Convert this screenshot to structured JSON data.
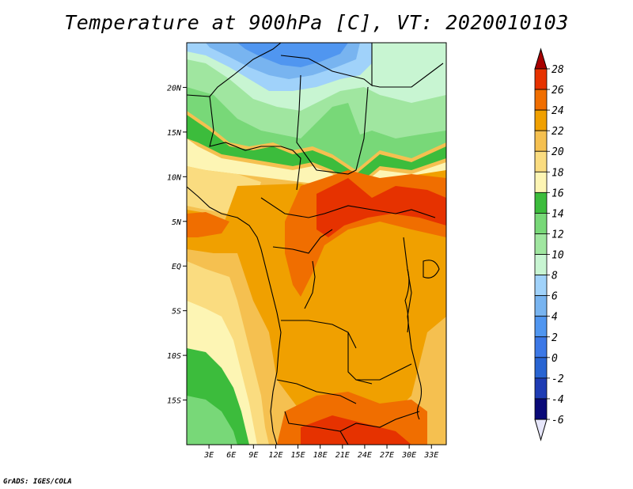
{
  "title": "Temperature at 900hPa [C], VT: 2020010103",
  "credit": "GrADS: IGES/COLA",
  "map": {
    "lon_range": [
      0,
      35
    ],
    "lat_range": [
      -20,
      25
    ],
    "x_ticks": [
      "3E",
      "6E",
      "9E",
      "12E",
      "15E",
      "18E",
      "21E",
      "24E",
      "27E",
      "30E",
      "33E"
    ],
    "y_ticks": [
      "20N",
      "15N",
      "10N",
      "5N",
      "EQ",
      "5S",
      "10S",
      "15S"
    ]
  },
  "colorbar": {
    "levels": [
      "28",
      "26",
      "24",
      "22",
      "20",
      "18",
      "16",
      "14",
      "12",
      "10",
      "8",
      "6",
      "4",
      "2",
      "0",
      "-2",
      "-4",
      "-6"
    ],
    "colors": [
      "#a80000",
      "#e63200",
      "#f06e00",
      "#f0a000",
      "#f5c050",
      "#fadc80",
      "#fdf5b4",
      "#3cbc3c",
      "#78d878",
      "#a0e6a0",
      "#c8f5d2",
      "#a0d2fa",
      "#78b4f0",
      "#5096f0",
      "#3c78e6",
      "#2864d2",
      "#1e3cb4",
      "#0a0a78",
      "#e6e6fa"
    ]
  }
}
